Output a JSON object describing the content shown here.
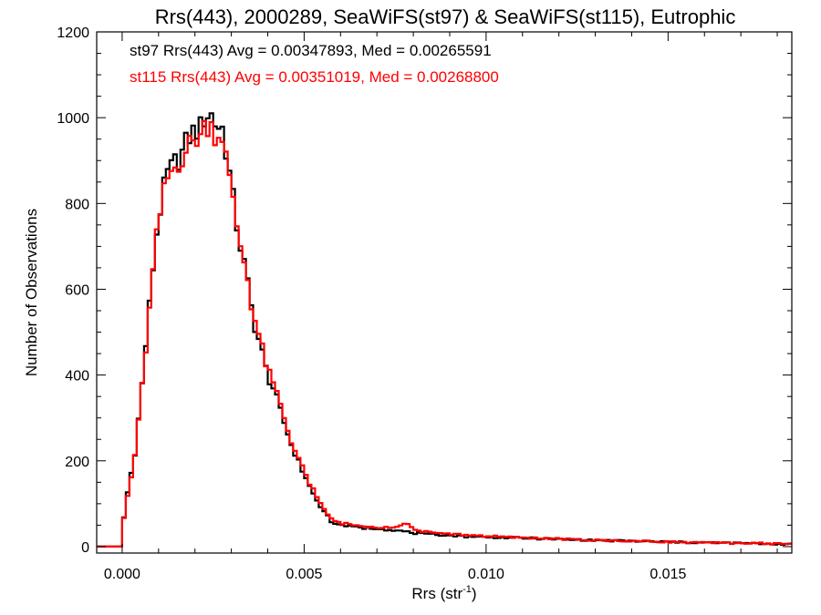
{
  "chart_data": {
    "type": "line",
    "title": "Rrs(443), 2000289, SeaWiFS(st97) & SeaWiFS(st115), Eutrophic",
    "xlabel": "Rrs (str",
    "xlabel_sup": "-1",
    "xlabel_suffix": ")",
    "ylabel": "Number of Observations",
    "xlim": [
      -0.0007,
      0.0184
    ],
    "ylim": [
      -15,
      1200
    ],
    "x_ticks": [
      0.0,
      0.005,
      0.01,
      0.015
    ],
    "x_tick_labels": [
      "0.000",
      "0.005",
      "0.010",
      "0.015"
    ],
    "y_ticks": [
      0,
      200,
      400,
      600,
      800,
      1000,
      1200
    ],
    "y_tick_labels": [
      "0",
      "200",
      "400",
      "600",
      "800",
      "1000",
      "1200"
    ],
    "grid": false,
    "legend": "top-left",
    "bin_width": 0.0001,
    "annotations": [
      {
        "text": "st97 Rrs(443) Avg = 0.00347893, Med = 0.00265591",
        "color": "#000000"
      },
      {
        "text": "st115 Rrs(443) Avg = 0.00351019, Med = 0.00268800",
        "color": "#ff0000"
      }
    ],
    "series": [
      {
        "name": "st97",
        "color": "#000000",
        "x": [
          -0.0007,
          0.0,
          0.0001,
          0.0002,
          0.0003,
          0.0004,
          0.0005,
          0.0006,
          0.0007,
          0.0008,
          0.0009,
          0.001,
          0.0012,
          0.0014,
          0.0016,
          0.0018,
          0.002,
          0.0022,
          0.0023,
          0.0024,
          0.0025,
          0.0026,
          0.0027,
          0.0028,
          0.0029,
          0.003,
          0.0032,
          0.0034,
          0.0036,
          0.0038,
          0.004,
          0.0042,
          0.0044,
          0.0046,
          0.0048,
          0.005,
          0.0052,
          0.0054,
          0.0056,
          0.0058,
          0.006,
          0.0065,
          0.007,
          0.0075,
          0.008,
          0.0085,
          0.009,
          0.0095,
          0.01,
          0.011,
          0.012,
          0.013,
          0.014,
          0.015,
          0.016,
          0.017,
          0.018,
          0.0184
        ],
        "y": [
          0,
          40,
          100,
          150,
          190,
          250,
          340,
          420,
          520,
          600,
          700,
          760,
          860,
          890,
          910,
          950,
          970,
          980,
          1020,
          1000,
          1015,
          960,
          1000,
          950,
          900,
          840,
          720,
          640,
          530,
          470,
          400,
          360,
          300,
          250,
          205,
          170,
          130,
          100,
          75,
          55,
          50,
          45,
          42,
          38,
          32,
          28,
          26,
          24,
          22,
          20,
          17,
          15,
          13,
          11,
          9,
          8,
          6,
          6
        ]
      },
      {
        "name": "st115",
        "color": "#ff0000",
        "x": [
          -0.0007,
          0.0,
          0.0001,
          0.0002,
          0.0003,
          0.0004,
          0.0005,
          0.0006,
          0.0007,
          0.0008,
          0.0009,
          0.001,
          0.0012,
          0.0014,
          0.0016,
          0.0018,
          0.002,
          0.0022,
          0.0023,
          0.0024,
          0.0025,
          0.0026,
          0.0027,
          0.0028,
          0.0029,
          0.003,
          0.0032,
          0.0034,
          0.0036,
          0.0038,
          0.004,
          0.0042,
          0.0044,
          0.0046,
          0.0048,
          0.005,
          0.0052,
          0.0054,
          0.0056,
          0.0058,
          0.006,
          0.0065,
          0.007,
          0.0075,
          0.0078,
          0.008,
          0.0085,
          0.009,
          0.0095,
          0.01,
          0.011,
          0.012,
          0.013,
          0.014,
          0.015,
          0.016,
          0.017,
          0.018,
          0.0184
        ],
        "y": [
          0,
          35,
          95,
          140,
          185,
          245,
          335,
          415,
          510,
          590,
          690,
          750,
          850,
          880,
          900,
          930,
          950,
          960,
          990,
          980,
          985,
          940,
          980,
          940,
          880,
          830,
          720,
          650,
          540,
          480,
          410,
          370,
          315,
          255,
          215,
          175,
          140,
          105,
          80,
          60,
          55,
          48,
          45,
          45,
          55,
          40,
          32,
          30,
          27,
          24,
          21,
          18,
          15,
          13,
          11,
          9,
          8,
          7,
          7
        ]
      }
    ]
  }
}
